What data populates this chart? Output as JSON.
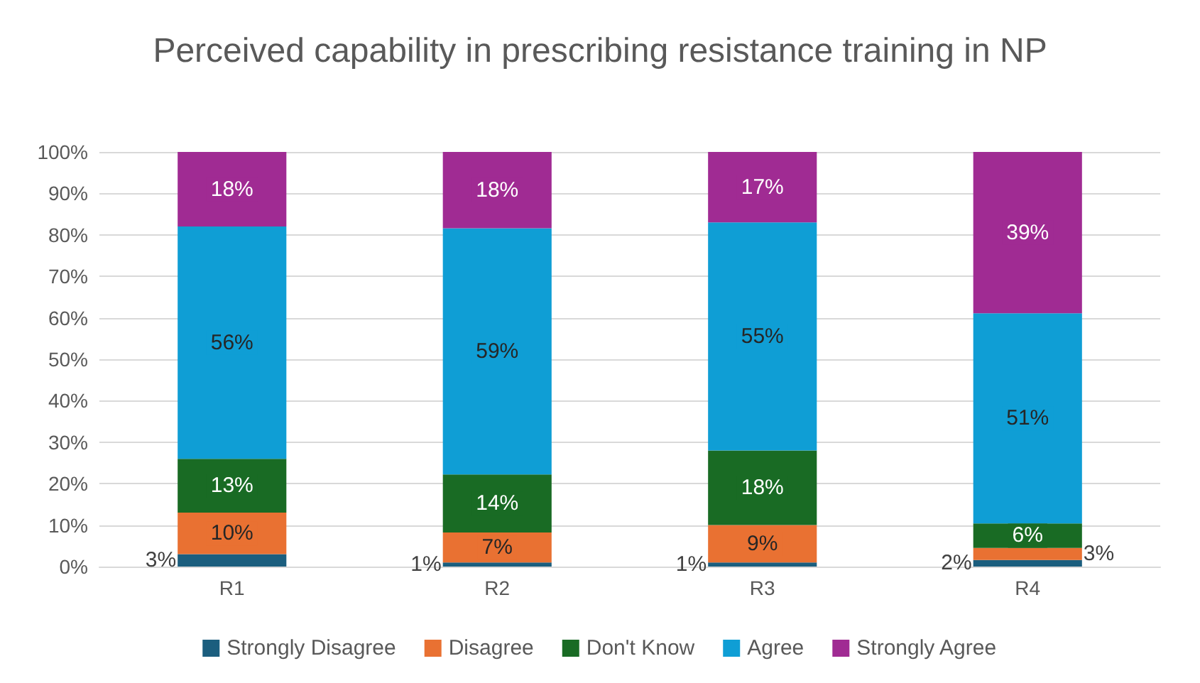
{
  "chart_data": {
    "type": "bar",
    "title": "Perceived capability in prescribing resistance training in NP",
    "categories": [
      "R1",
      "R2",
      "R3",
      "R4"
    ],
    "stacked": true,
    "series": [
      {
        "name": "Strongly Disagree",
        "color": "#1b5e7e",
        "values": [
          3,
          1,
          1,
          1.6
        ],
        "value_labels": [
          "3%",
          "1%",
          "1%",
          "2%"
        ]
      },
      {
        "name": "Disagree",
        "color": "#e97132",
        "values": [
          10,
          7.2,
          9,
          2.9
        ],
        "value_labels": [
          "10%",
          "7%",
          "9%",
          "3%"
        ]
      },
      {
        "name": "Don't Know",
        "color": "#196b24",
        "values": [
          13,
          14,
          18,
          5.9
        ],
        "value_labels": [
          "13%",
          "14%",
          "18%",
          "6%"
        ]
      },
      {
        "name": "Agree",
        "color": "#0f9ed5",
        "values": [
          56,
          59.4,
          55,
          50.7
        ],
        "value_labels": [
          "56%",
          "59%",
          "55%",
          "51%"
        ]
      },
      {
        "name": "Strongly Agree",
        "color": "#a02b93",
        "values": [
          18,
          18.4,
          17,
          38.9
        ],
        "value_labels": [
          "18%",
          "18%",
          "17%",
          "39%"
        ]
      }
    ],
    "ylim": [
      0,
      100
    ],
    "yticks": [
      {
        "value": 0,
        "label": "0%"
      },
      {
        "value": 10,
        "label": "10%"
      },
      {
        "value": 20,
        "label": "20%"
      },
      {
        "value": 30,
        "label": "30%"
      },
      {
        "value": 40,
        "label": "40%"
      },
      {
        "value": 50,
        "label": "50%"
      },
      {
        "value": 60,
        "label": "60%"
      },
      {
        "value": 70,
        "label": "70%"
      },
      {
        "value": 80,
        "label": "80%"
      },
      {
        "value": 90,
        "label": "90%"
      },
      {
        "value": 100,
        "label": "100%"
      }
    ],
    "grid": "y",
    "legend": "bottom"
  }
}
